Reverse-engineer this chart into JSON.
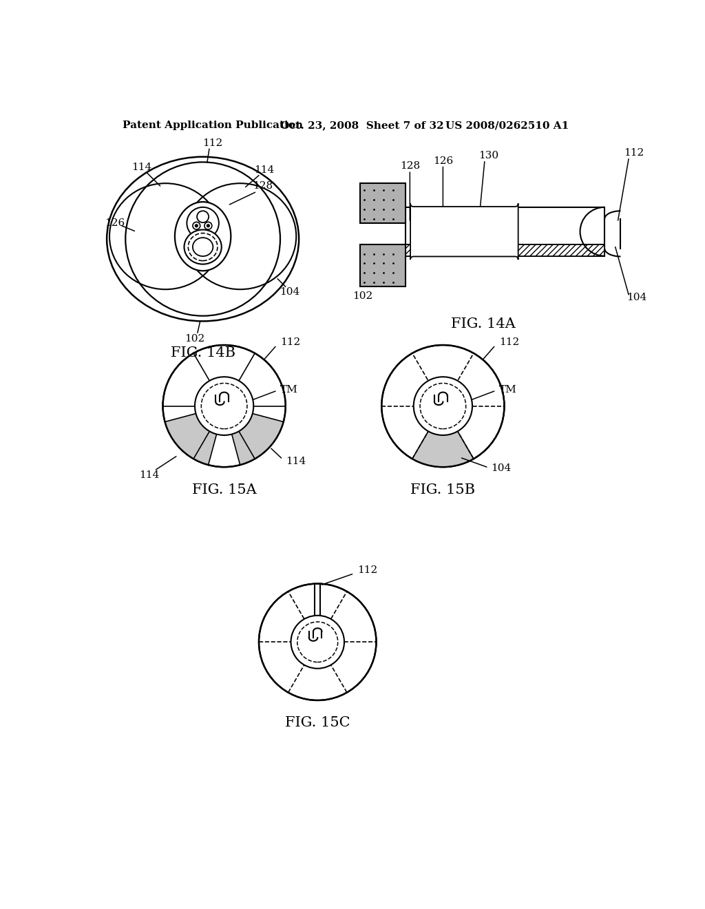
{
  "bg_color": "#ffffff",
  "header_text": "Patent Application Publication",
  "header_date": "Oct. 23, 2008  Sheet 7 of 32",
  "header_patent": "US 2008/0262510 A1",
  "fig14b_label": "FIG. 14B",
  "fig14a_label": "FIG. 14A",
  "fig15a_label": "FIG. 15A",
  "fig15b_label": "FIG. 15B",
  "fig15c_label": "FIG. 15C",
  "wedge_color": "#c8c8c8",
  "stipple_color": "#b0b0b0"
}
